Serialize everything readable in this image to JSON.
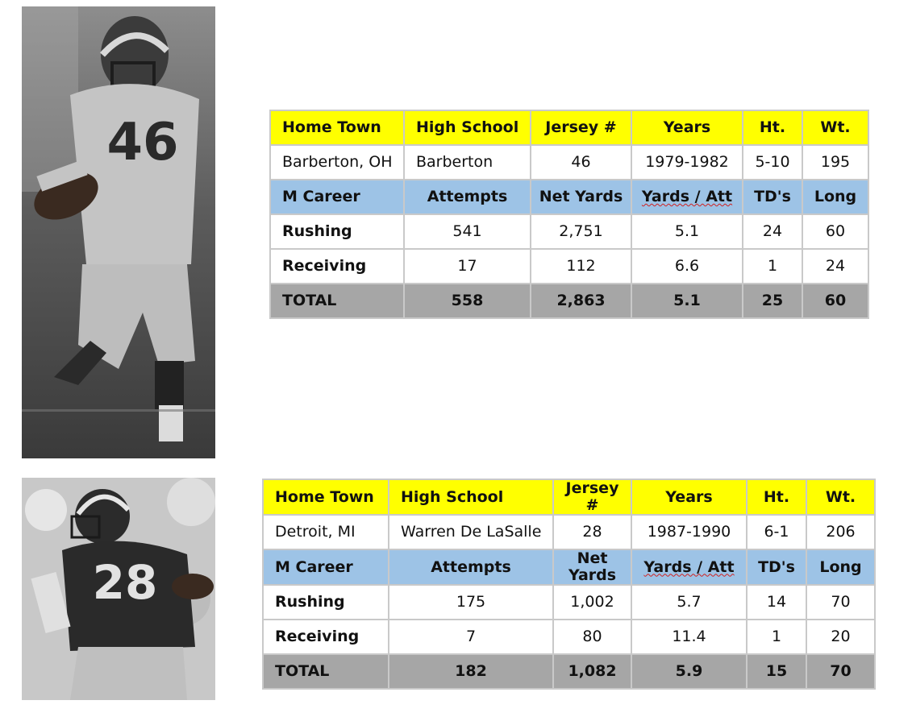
{
  "players": [
    {
      "photo_jersey": "46",
      "info_headers": [
        "Home Town",
        "High School",
        "Jersey #",
        "Years",
        "Ht.",
        "Wt."
      ],
      "info": [
        "Barberton, OH",
        "Barberton",
        "46",
        "1979-1982",
        "5-10",
        "195"
      ],
      "career_headers": [
        "M Career",
        "Attempts",
        "Net Yards",
        "Yards / Att",
        "TD's",
        "Long"
      ],
      "rows": [
        {
          "label": "Rushing",
          "values": [
            "541",
            "2,751",
            "5.1",
            "24",
            "60"
          ]
        },
        {
          "label": "Receiving",
          "values": [
            "17",
            "112",
            "6.6",
            "1",
            "24"
          ]
        },
        {
          "label": "TOTAL",
          "values": [
            "558",
            "2,863",
            "5.1",
            "25",
            "60"
          ]
        }
      ]
    },
    {
      "photo_jersey": "28",
      "info_headers": [
        "Home Town",
        "High School",
        "Jersey #",
        "Years",
        "Ht.",
        "Wt."
      ],
      "info": [
        "Detroit, MI",
        "Warren De LaSalle",
        "28",
        "1987-1990",
        "6-1",
        "206"
      ],
      "career_headers": [
        "M Career",
        "Attempts",
        "Net Yards",
        "Yards / Att",
        "TD's",
        "Long"
      ],
      "rows": [
        {
          "label": "Rushing",
          "values": [
            "175",
            "1,002",
            "5.7",
            "14",
            "70"
          ]
        },
        {
          "label": "Receiving",
          "values": [
            "7",
            "80",
            "11.4",
            "1",
            "20"
          ]
        },
        {
          "label": "TOTAL",
          "values": [
            "182",
            "1,082",
            "5.9",
            "15",
            "70"
          ]
        }
      ]
    }
  ]
}
